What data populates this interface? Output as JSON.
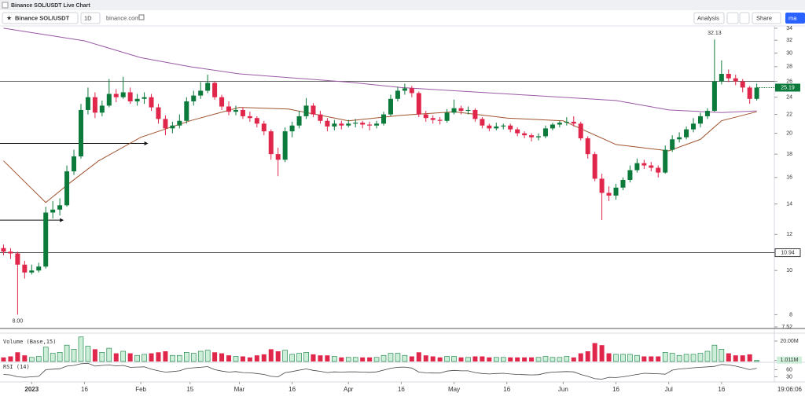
{
  "header": {
    "title": "Binance SOL/USDT Live Chart"
  },
  "toolbar": {
    "symbol": "Binance SOL/USDT",
    "interval": "1D",
    "source": "binance.com",
    "analysis": "Analysis",
    "share": "Share",
    "tab": "ma"
  },
  "chart_data": {
    "type": "candlestick",
    "x": [
      "2022-12-24",
      "2022-12-26",
      "2022-12-28",
      "2022-12-30",
      "2023-01-01",
      "2023-01-03",
      "2023-01-05",
      "2023-01-07",
      "2023-01-09",
      "2023-01-11",
      "2023-01-13",
      "2023-01-15",
      "2023-01-17",
      "2023-01-19",
      "2023-01-21",
      "2023-01-23",
      "2023-01-25",
      "2023-01-27",
      "2023-01-29",
      "2023-01-31",
      "2023-02-02",
      "2023-02-04",
      "2023-02-06",
      "2023-02-08",
      "2023-02-10",
      "2023-02-12",
      "2023-02-14",
      "2023-02-16",
      "2023-02-18",
      "2023-02-20",
      "2023-02-22",
      "2023-02-24",
      "2023-02-26",
      "2023-02-28",
      "2023-03-02",
      "2023-03-04",
      "2023-03-06",
      "2023-03-08",
      "2023-03-10",
      "2023-03-12",
      "2023-03-14",
      "2023-03-16",
      "2023-03-18",
      "2023-03-20",
      "2023-03-22",
      "2023-03-24",
      "2023-03-26",
      "2023-03-28",
      "2023-03-30",
      "2023-04-01",
      "2023-04-03",
      "2023-04-05",
      "2023-04-07",
      "2023-04-09",
      "2023-04-11",
      "2023-04-13",
      "2023-04-15",
      "2023-04-17",
      "2023-04-19",
      "2023-04-21",
      "2023-04-23",
      "2023-04-25",
      "2023-04-27",
      "2023-04-29",
      "2023-05-01",
      "2023-05-03",
      "2023-05-05",
      "2023-05-07",
      "2023-05-09",
      "2023-05-11",
      "2023-05-13",
      "2023-05-15",
      "2023-05-17",
      "2023-05-19",
      "2023-05-21",
      "2023-05-23",
      "2023-05-25",
      "2023-05-27",
      "2023-05-29",
      "2023-05-31",
      "2023-06-02",
      "2023-06-04",
      "2023-06-06",
      "2023-06-08",
      "2023-06-10",
      "2023-06-12",
      "2023-06-14",
      "2023-06-16",
      "2023-06-18",
      "2023-06-20",
      "2023-06-22",
      "2023-06-24",
      "2023-06-26",
      "2023-06-28",
      "2023-06-30",
      "2023-07-02",
      "2023-07-04",
      "2023-07-06",
      "2023-07-08",
      "2023-07-10",
      "2023-07-12",
      "2023-07-14",
      "2023-07-16",
      "2023-07-18",
      "2023-07-20",
      "2023-07-22",
      "2023-07-24",
      "2023-07-26"
    ],
    "candles": [
      [
        11.2,
        11.4,
        10.8,
        11.0
      ],
      [
        11.0,
        11.2,
        10.6,
        10.9
      ],
      [
        10.9,
        11.0,
        8.0,
        10.3
      ],
      [
        10.3,
        10.5,
        9.6,
        9.9
      ],
      [
        9.9,
        10.3,
        9.8,
        10.0
      ],
      [
        10.0,
        10.4,
        9.9,
        10.2
      ],
      [
        10.2,
        13.8,
        10.1,
        13.4
      ],
      [
        13.4,
        14.2,
        13.0,
        13.6
      ],
      [
        13.6,
        14.4,
        13.2,
        13.9
      ],
      [
        13.9,
        17.0,
        13.8,
        16.5
      ],
      [
        16.5,
        18.4,
        16.2,
        17.8
      ],
      [
        17.8,
        23.2,
        17.6,
        22.5
      ],
      [
        22.5,
        25.2,
        22.0,
        24.0
      ],
      [
        24.0,
        24.6,
        21.6,
        22.2
      ],
      [
        22.2,
        23.6,
        21.8,
        23.0
      ],
      [
        23.0,
        26.3,
        22.8,
        24.4
      ],
      [
        24.4,
        25.0,
        23.4,
        24.0
      ],
      [
        24.0,
        26.6,
        23.8,
        24.6
      ],
      [
        24.6,
        25.2,
        23.2,
        23.5
      ],
      [
        23.5,
        24.4,
        23.0,
        23.8
      ],
      [
        23.8,
        24.6,
        23.2,
        24.0
      ],
      [
        24.0,
        24.4,
        22.4,
        22.8
      ],
      [
        22.8,
        23.2,
        21.0,
        21.5
      ],
      [
        21.5,
        21.9,
        19.8,
        20.5
      ],
      [
        20.5,
        21.2,
        20.0,
        20.8
      ],
      [
        20.8,
        22.0,
        20.5,
        21.3
      ],
      [
        21.3,
        24.0,
        21.0,
        23.5
      ],
      [
        23.5,
        24.8,
        23.0,
        24.2
      ],
      [
        24.2,
        25.9,
        23.8,
        24.8
      ],
      [
        24.8,
        26.9,
        24.5,
        25.8
      ],
      [
        25.8,
        26.0,
        23.7,
        24.0
      ],
      [
        24.0,
        24.3,
        22.5,
        22.9
      ],
      [
        22.9,
        23.5,
        21.9,
        22.3
      ],
      [
        22.3,
        23.0,
        21.9,
        22.5
      ],
      [
        22.5,
        22.8,
        21.5,
        21.8
      ],
      [
        21.8,
        22.3,
        21.2,
        21.6
      ],
      [
        21.6,
        21.8,
        20.6,
        21.0
      ],
      [
        21.0,
        21.3,
        19.8,
        20.2
      ],
      [
        20.2,
        20.4,
        17.5,
        18.0
      ],
      [
        18.0,
        18.6,
        16.1,
        17.5
      ],
      [
        17.5,
        20.6,
        17.3,
        20.2
      ],
      [
        20.2,
        21.2,
        19.6,
        20.8
      ],
      [
        20.8,
        22.4,
        20.5,
        21.8
      ],
      [
        21.8,
        23.9,
        21.5,
        23.0
      ],
      [
        23.0,
        23.3,
        21.7,
        22.0
      ],
      [
        22.0,
        22.4,
        21.0,
        21.3
      ],
      [
        21.3,
        21.6,
        20.2,
        20.7
      ],
      [
        20.7,
        21.4,
        20.3,
        21.0
      ],
      [
        21.0,
        21.3,
        20.4,
        20.8
      ],
      [
        20.8,
        21.4,
        20.6,
        21.0
      ],
      [
        21.0,
        21.5,
        20.6,
        21.1
      ],
      [
        21.1,
        21.3,
        20.5,
        20.9
      ],
      [
        20.9,
        21.2,
        20.3,
        20.8
      ],
      [
        20.8,
        21.3,
        20.5,
        21.0
      ],
      [
        21.0,
        22.3,
        20.8,
        22.0
      ],
      [
        22.0,
        24.3,
        21.8,
        23.8
      ],
      [
        23.8,
        25.3,
        23.5,
        24.8
      ],
      [
        24.8,
        25.7,
        24.3,
        25.1
      ],
      [
        25.1,
        25.4,
        24.0,
        24.5
      ],
      [
        24.5,
        24.7,
        21.7,
        22.0
      ],
      [
        22.0,
        22.4,
        21.2,
        21.6
      ],
      [
        21.6,
        21.9,
        21.0,
        21.4
      ],
      [
        21.4,
        21.7,
        20.9,
        21.3
      ],
      [
        21.3,
        22.6,
        21.1,
        22.2
      ],
      [
        22.2,
        23.7,
        22.0,
        22.7
      ],
      [
        22.7,
        23.0,
        22.0,
        22.4
      ],
      [
        22.4,
        22.9,
        22.0,
        22.5
      ],
      [
        22.5,
        22.7,
        21.2,
        21.5
      ],
      [
        21.5,
        21.7,
        20.5,
        20.8
      ],
      [
        20.8,
        21.0,
        20.2,
        20.5
      ],
      [
        20.5,
        21.1,
        20.3,
        20.7
      ],
      [
        20.7,
        21.0,
        20.4,
        20.8
      ],
      [
        20.8,
        21.0,
        20.1,
        20.4
      ],
      [
        20.4,
        20.6,
        19.7,
        20.0
      ],
      [
        20.0,
        20.2,
        19.5,
        19.8
      ],
      [
        19.8,
        20.0,
        19.2,
        19.6
      ],
      [
        19.6,
        20.0,
        19.3,
        19.7
      ],
      [
        19.7,
        20.8,
        19.5,
        20.5
      ],
      [
        20.5,
        21.1,
        20.3,
        20.9
      ],
      [
        20.9,
        21.3,
        20.6,
        21.1
      ],
      [
        21.1,
        21.7,
        20.8,
        21.2
      ],
      [
        21.2,
        21.8,
        20.7,
        21.0
      ],
      [
        21.0,
        21.2,
        19.3,
        19.5
      ],
      [
        19.5,
        19.7,
        17.6,
        18.0
      ],
      [
        18.0,
        18.2,
        15.7,
        15.9
      ],
      [
        15.9,
        16.3,
        12.9,
        14.8
      ],
      [
        14.8,
        15.3,
        14.2,
        14.6
      ],
      [
        14.6,
        15.5,
        14.3,
        15.2
      ],
      [
        15.2,
        16.0,
        15.0,
        15.8
      ],
      [
        15.8,
        17.0,
        15.6,
        16.6
      ],
      [
        16.6,
        17.6,
        16.4,
        17.2
      ],
      [
        17.2,
        17.5,
        16.7,
        17.0
      ],
      [
        17.0,
        17.3,
        16.5,
        16.8
      ],
      [
        16.8,
        17.0,
        16.0,
        16.4
      ],
      [
        16.4,
        18.8,
        16.3,
        18.4
      ],
      [
        18.4,
        19.8,
        18.2,
        19.4
      ],
      [
        19.4,
        20.1,
        19.1,
        19.6
      ],
      [
        19.6,
        20.7,
        19.4,
        20.4
      ],
      [
        20.4,
        21.6,
        20.1,
        21.0
      ],
      [
        21.0,
        22.2,
        20.6,
        21.8
      ],
      [
        21.8,
        22.7,
        21.5,
        22.4
      ],
      [
        22.4,
        32.13,
        22.3,
        26.0
      ],
      [
        26.0,
        28.9,
        25.6,
        27.0
      ],
      [
        27.0,
        27.6,
        25.9,
        26.4
      ],
      [
        26.4,
        26.9,
        25.5,
        26.0
      ],
      [
        26.0,
        26.3,
        24.6,
        25.2
      ],
      [
        25.2,
        25.4,
        23.2,
        23.8
      ],
      [
        23.8,
        25.7,
        23.6,
        25.19
      ]
    ],
    "colors": {
      "up": "#0b7a3b",
      "down": "#e0264a"
    },
    "scale": "log",
    "ylim": [
      7.52,
      34.4
    ],
    "yticks": [
      34,
      32,
      30,
      28,
      26,
      24,
      22,
      20,
      18,
      16,
      14,
      12,
      10,
      8,
      7.52
    ],
    "xlim": [
      "2022-12-23",
      "2023-07-31"
    ],
    "xticks": [
      {
        "value": "2023-01-01",
        "label": "2023"
      },
      {
        "value": "2023-01-16",
        "label": "16"
      },
      {
        "value": "2023-02-01",
        "label": "Feb"
      },
      {
        "value": "2023-02-15",
        "label": "15"
      },
      {
        "value": "2023-03-01",
        "label": "Mar"
      },
      {
        "value": "2023-03-16",
        "label": "16"
      },
      {
        "value": "2023-04-01",
        "label": "Apr"
      },
      {
        "value": "2023-04-16",
        "label": "16"
      },
      {
        "value": "2023-05-01",
        "label": "May"
      },
      {
        "value": "2023-05-16",
        "label": "16"
      },
      {
        "value": "2023-06-01",
        "label": "Jun"
      },
      {
        "value": "2023-06-16",
        "label": "16"
      },
      {
        "value": "2023-07-01",
        "label": "Jul"
      },
      {
        "value": "2023-07-16",
        "label": "16"
      }
    ],
    "low_label": "8.00",
    "hlines": [
      26,
      10.94
    ],
    "rays": [
      {
        "value": 19,
        "to": "2023-02-02"
      },
      {
        "value": 12.9,
        "to": "2023-01-09"
      }
    ],
    "moving_averages": [
      {
        "color": "#9b59a6",
        "x": [
          "2022-12-24",
          "2023-01-16",
          "2023-02-01",
          "2023-02-15",
          "2023-03-01",
          "2023-04-01",
          "2023-04-16",
          "2023-05-16",
          "2023-06-16",
          "2023-07-01",
          "2023-07-16",
          "2023-07-26"
        ],
        "values": [
          34.0,
          31.9,
          29.3,
          28.0,
          27.0,
          25.9,
          25.2,
          24.4,
          23.6,
          22.5,
          22.2,
          22.4
        ]
      },
      {
        "color": "#a0522d",
        "x": [
          "2022-12-24",
          "2023-01-05",
          "2023-01-12",
          "2023-01-20",
          "2023-02-01",
          "2023-02-15",
          "2023-03-01",
          "2023-03-15",
          "2023-04-01",
          "2023-04-16",
          "2023-05-01",
          "2023-05-16",
          "2023-06-01",
          "2023-06-16",
          "2023-07-01",
          "2023-07-10",
          "2023-07-16",
          "2023-07-26"
        ],
        "values": [
          17.4,
          14.1,
          15.6,
          17.4,
          19.6,
          21.3,
          22.8,
          22.6,
          21.3,
          21.9,
          22.3,
          21.6,
          21.3,
          18.9,
          18.3,
          19.4,
          21.3,
          22.3
        ]
      }
    ],
    "volume": {
      "title": "Volume (Base,15)",
      "values": [
        4000000.0,
        5000000.0,
        9000000.0,
        6000000.0,
        4000000.0,
        5000000.0,
        14000000.0,
        8000000.0,
        9000000.0,
        16000000.0,
        12000000.0,
        24000000.0,
        15000000.0,
        12000000.0,
        9000000.0,
        13000000.0,
        8000000.0,
        10000000.0,
        8000000.0,
        6000000.0,
        7000000.0,
        8000000.0,
        9000000.0,
        10000000.0,
        6000000.0,
        6000000.0,
        9000000.0,
        8000000.0,
        10000000.0,
        11000000.0,
        9000000.0,
        8000000.0,
        6000000.0,
        5000000.0,
        5000000.0,
        4000000.0,
        6000000.0,
        7000000.0,
        12000000.0,
        10000000.0,
        11000000.0,
        7000000.0,
        8000000.0,
        9000000.0,
        7000000.0,
        6000000.0,
        6000000.0,
        5000000.0,
        4000000.0,
        4000000.0,
        4000000.0,
        4000000.0,
        4000000.0,
        4000000.0,
        6000000.0,
        8000000.0,
        8000000.0,
        6000000.0,
        5000000.0,
        9000000.0,
        6000000.0,
        5000000.0,
        4000000.0,
        5000000.0,
        5000000.0,
        4000000.0,
        4000000.0,
        5000000.0,
        5000000.0,
        4000000.0,
        4000000.0,
        4000000.0,
        4000000.0,
        4000000.0,
        4000000.0,
        4000000.0,
        4000000.0,
        5000000.0,
        4000000.0,
        4000000.0,
        5000000.0,
        4000000.0,
        8000000.0,
        10000000.0,
        18000000.0,
        16000000.0,
        8000000.0,
        7000000.0,
        7000000.0,
        7000000.0,
        6000000.0,
        5000000.0,
        5000000.0,
        5000000.0,
        9000000.0,
        8000000.0,
        6000000.0,
        7000000.0,
        7000000.0,
        8000000.0,
        10000000.0,
        16000000.0,
        12000000.0,
        8000000.0,
        6000000.0,
        6000000.0,
        7000000.0,
        1011000
      ],
      "ylim": [
        0,
        24600000
      ],
      "yticks": [
        {
          "value": 20000000,
          "label": "20.00M"
        },
        {
          "value": 1011000,
          "label": "1.011M"
        }
      ]
    },
    "rsi": {
      "title": "RSI (14)",
      "color": "#444444",
      "values": [
        40,
        38,
        30,
        28,
        30,
        32,
        60,
        62,
        64,
        75,
        78,
        85,
        87,
        75,
        78,
        80,
        76,
        78,
        70,
        71,
        72,
        62,
        55,
        50,
        52,
        55,
        65,
        68,
        70,
        73,
        60,
        54,
        50,
        52,
        48,
        47,
        44,
        40,
        32,
        30,
        48,
        52,
        58,
        63,
        57,
        53,
        48,
        51,
        50,
        51,
        51,
        50,
        49,
        51,
        58,
        66,
        70,
        71,
        67,
        50,
        47,
        46,
        46,
        54,
        57,
        55,
        55,
        48,
        44,
        42,
        44,
        45,
        42,
        40,
        39,
        38,
        39,
        46,
        50,
        51,
        52,
        51,
        40,
        32,
        22,
        20,
        28,
        27,
        30,
        35,
        40,
        45,
        44,
        43,
        41,
        58,
        63,
        65,
        68,
        70,
        72,
        74,
        82,
        80,
        75,
        68,
        60,
        66
      ],
      "ylim": [
        15,
        88
      ],
      "yticks": [
        60,
        30
      ]
    },
    "clock": "19:06:06"
  }
}
